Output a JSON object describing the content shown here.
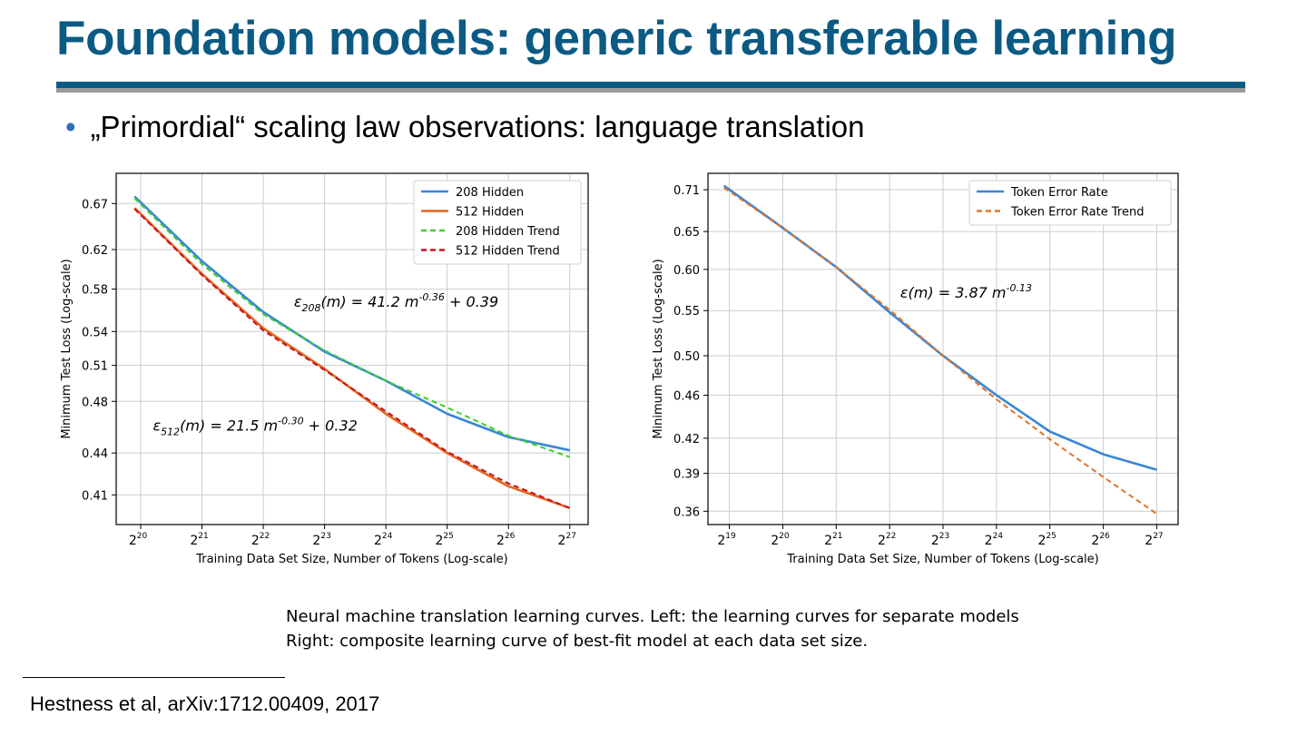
{
  "slide": {
    "title": "Foundation models: generic transferable learning",
    "bullet": "„Primordial“ scaling law observations: language translation",
    "caption_line1": "Neural machine translation learning curves. Left: the learning curves for separate models",
    "caption_line2": "Right: composite learning curve of best-fit model at each data set size.",
    "footnote": "Hestness et al, arXiv:1712.00409, 2017"
  },
  "chart_data": [
    {
      "type": "line",
      "xlabel": "Training Data Set Size, Number of Tokens (Log-scale)",
      "ylabel": "Minimum Test Loss (Log-scale)",
      "x_scale": "log2",
      "y_scale": "log",
      "xlim_exp": [
        19.6,
        27.3
      ],
      "ylim": [
        0.39,
        0.705
      ],
      "x_ticks_exp": [
        20,
        21,
        22,
        23,
        24,
        25,
        26,
        27
      ],
      "y_ticks": [
        0.41,
        0.44,
        0.48,
        0.51,
        0.54,
        0.58,
        0.62,
        0.67
      ],
      "grid": true,
      "legend_position": "upper right",
      "series": [
        {
          "name": "208 Hidden",
          "color": "#3a86d6",
          "dash": "solid",
          "x_exp": [
            19.9,
            21,
            22,
            23,
            24,
            25,
            26,
            27
          ],
          "y": [
            0.678,
            0.608,
            0.558,
            0.522,
            0.497,
            0.47,
            0.452,
            0.442
          ]
        },
        {
          "name": "512 Hidden",
          "color": "#e8641e",
          "dash": "solid",
          "x_exp": [
            19.9,
            21,
            22,
            23,
            24,
            25,
            26,
            27
          ],
          "y": [
            0.665,
            0.595,
            0.543,
            0.507,
            0.47,
            0.44,
            0.416,
            0.401
          ]
        },
        {
          "name": "208 Hidden Trend",
          "color": "#3ccf2a",
          "dash": "dashed",
          "x_exp": [
            19.9,
            21,
            22,
            23,
            24,
            25,
            26,
            27
          ],
          "y": [
            0.676,
            0.605,
            0.556,
            0.523,
            0.497,
            0.475,
            0.453,
            0.437
          ]
        },
        {
          "name": "512 Hidden Trend",
          "color": "#c8101e",
          "dash": "dashed",
          "x_exp": [
            19.9,
            21,
            22,
            23,
            24,
            25,
            26,
            27
          ],
          "y": [
            0.664,
            0.594,
            0.541,
            0.506,
            0.472,
            0.441,
            0.418,
            0.401
          ]
        }
      ],
      "annotations": [
        {
          "label_sub": "208",
          "formula": "(m) = 41.2 m",
          "exponent": "-0.36",
          "tail": " + 0.39",
          "x_exp": 22.5,
          "y": 0.563
        },
        {
          "label_sub": "512",
          "formula": "(m) = 21.5 m",
          "exponent": "-0.30",
          "tail": " + 0.32",
          "x_exp": 20.2,
          "y": 0.457
        }
      ]
    },
    {
      "type": "line",
      "xlabel": "Training Data Set Size, Number of Tokens (Log-scale)",
      "ylabel": "Minimum Test Loss (Log-scale)",
      "x_scale": "log2",
      "y_scale": "log",
      "xlim_exp": [
        18.6,
        27.4
      ],
      "ylim": [
        0.35,
        0.735
      ],
      "x_ticks_exp": [
        19,
        20,
        21,
        22,
        23,
        24,
        25,
        26,
        27
      ],
      "y_ticks": [
        0.36,
        0.39,
        0.42,
        0.46,
        0.5,
        0.55,
        0.6,
        0.65,
        0.71
      ],
      "grid": true,
      "legend_position": "upper right",
      "series": [
        {
          "name": "Token Error Rate",
          "color": "#3a86d6",
          "dash": "solid",
          "x_exp": [
            18.9,
            20,
            21,
            22,
            23,
            24,
            25,
            26,
            27
          ],
          "y": [
            0.716,
            0.655,
            0.603,
            0.548,
            0.5,
            0.46,
            0.426,
            0.406,
            0.393
          ]
        },
        {
          "name": "Token Error Rate Trend",
          "color": "#e07428",
          "dash": "dashed",
          "x_exp": [
            18.9,
            20,
            21,
            22,
            23,
            24,
            25,
            26,
            27
          ],
          "y": [
            0.713,
            0.655,
            0.603,
            0.551,
            0.5,
            0.456,
            0.419,
            0.387,
            0.358
          ]
        }
      ],
      "annotations": [
        {
          "label": "ε(m) = 3.87 m",
          "exponent": "-0.13",
          "tail": "",
          "x_exp": 22.2,
          "y": 0.565
        }
      ]
    }
  ]
}
